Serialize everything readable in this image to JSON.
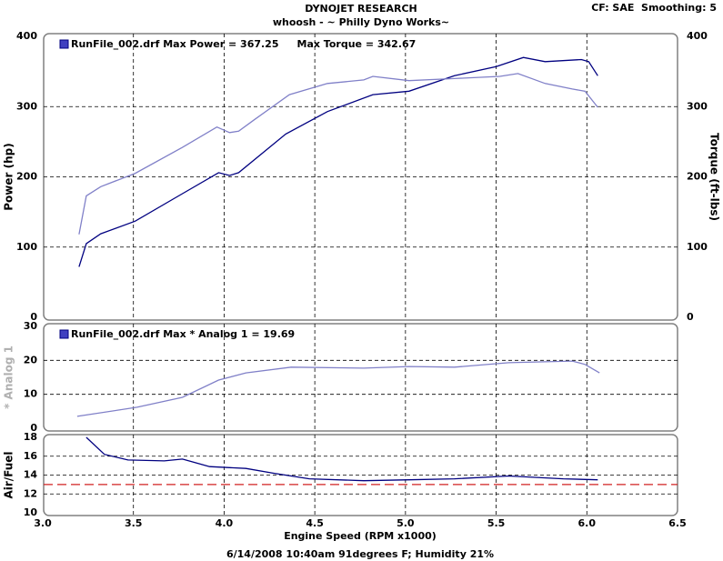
{
  "chart_data": [
    {
      "type": "line",
      "title": "DYNOJET RESEARCH",
      "subtitle": "whoosh - ~ Philly Dyno Works~",
      "settings_label": "CF: SAE  Smoothing: 5",
      "ylabel": "Power (hp)",
      "y2label": "Torque (ft-lbs)",
      "legend": [
        "RunFile_002.drf Max Power = 367.25",
        "Max Torque = 342.67"
      ],
      "ylim": [
        0,
        400
      ],
      "yticks": [
        0,
        100,
        200,
        300,
        400
      ],
      "y2lim": [
        0,
        400
      ],
      "y2ticks": [
        0,
        100,
        200,
        300,
        400
      ],
      "grid": true,
      "series": [
        {
          "name": "Power",
          "color": "#000080",
          "x": [
            3.2,
            3.24,
            3.32,
            3.51,
            3.77,
            3.97,
            4.03,
            4.08,
            4.34,
            4.57,
            4.82,
            5.02,
            5.27,
            5.5,
            5.65,
            5.77,
            5.97,
            6.01,
            6.06
          ],
          "values": [
            72,
            105,
            119,
            137,
            176,
            206,
            202,
            206,
            261,
            293,
            317,
            322,
            344,
            357,
            370,
            364,
            367,
            364,
            344
          ]
        },
        {
          "name": "Torque",
          "color": "#8080c8",
          "axis": "y2",
          "x": [
            3.2,
            3.24,
            3.32,
            3.51,
            3.77,
            3.96,
            4.03,
            4.08,
            4.17,
            4.36,
            4.57,
            4.77,
            4.82,
            5.02,
            5.27,
            5.52,
            5.62,
            5.77,
            5.92,
            5.99,
            6.06
          ],
          "values": [
            118,
            173,
            186,
            205,
            242,
            271,
            263,
            265,
            282,
            317,
            333,
            338,
            343,
            337,
            340,
            343,
            347,
            333,
            325,
            322,
            299
          ]
        }
      ]
    },
    {
      "type": "line",
      "ylabel": "* Analog 1",
      "legend": [
        "RunFile_002.drf Max * Analog 1 = 19.69"
      ],
      "ylim": [
        0,
        30
      ],
      "yticks": [
        0,
        10,
        20,
        30
      ],
      "grid": true,
      "series": [
        {
          "name": "* Analog 1",
          "color": "#8080c8",
          "x": [
            3.19,
            3.52,
            3.77,
            3.97,
            4.12,
            4.37,
            4.77,
            5.02,
            5.27,
            5.57,
            5.92,
            5.99,
            6.07
          ],
          "values": [
            3.5,
            6.2,
            9.1,
            14.2,
            16.3,
            18,
            17.7,
            18.2,
            18,
            19.3,
            19.8,
            18.8,
            16.3
          ]
        }
      ]
    },
    {
      "type": "line",
      "ylabel": "Air/Fuel",
      "xlabel": "Engine Speed (RPM x1000)",
      "footer": "6/14/2008 10:40am 91degrees F; Humidity 21%",
      "ylim": [
        10,
        18
      ],
      "yticks": [
        10,
        12,
        14,
        16,
        18
      ],
      "xlim": [
        3.0,
        6.5
      ],
      "xticks": [
        {
          "value": 3,
          "label": "3.0"
        },
        {
          "value": 3.5,
          "label": "3.5"
        },
        {
          "value": 4,
          "label": "4.0"
        },
        {
          "value": 4.5,
          "label": "4.5"
        },
        {
          "value": 5,
          "label": "5.0"
        },
        {
          "value": 5.5,
          "label": "5.5"
        },
        {
          "value": 6,
          "label": "6.0"
        },
        {
          "value": 6.5,
          "label": "6.5"
        }
      ],
      "grid": true,
      "reference_line": 13,
      "reference_color": "#d02020",
      "series": [
        {
          "name": "Air/Fuel",
          "color": "#000080",
          "x": [
            3.24,
            3.34,
            3.47,
            3.67,
            3.77,
            3.92,
            4.12,
            4.27,
            4.47,
            4.77,
            5.02,
            5.27,
            5.57,
            5.87,
            6.06
          ],
          "values": [
            18,
            16.2,
            15.6,
            15.5,
            15.7,
            14.9,
            14.7,
            14.2,
            13.6,
            13.4,
            13.5,
            13.6,
            13.9,
            13.6,
            13.5
          ]
        }
      ]
    }
  ]
}
